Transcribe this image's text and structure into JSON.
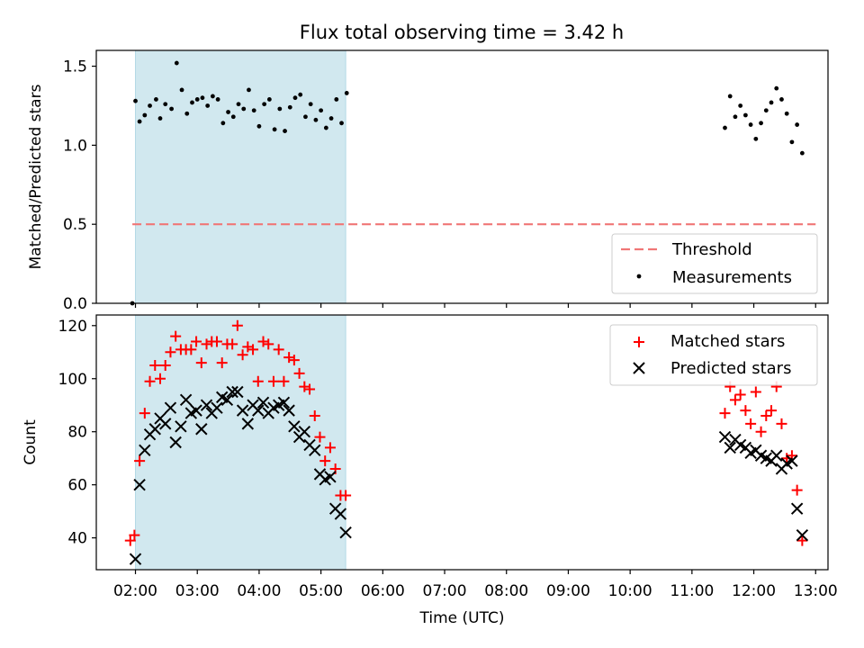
{
  "title": "Flux total observing time = 3.42 h",
  "chart_data": [
    {
      "type": "scatter",
      "ylabel": "Matched/Predicted stars",
      "xlabel": "",
      "xlim": [
        "01:22",
        "13:12"
      ],
      "ylim": [
        0,
        1.6
      ],
      "yticks": [
        0.0,
        0.5,
        1.0,
        1.5
      ],
      "ytick_labels": [
        "0.0",
        "0.5",
        "1.0",
        "1.5"
      ],
      "grid": false,
      "legend_position": "lower-right",
      "shaded_span": {
        "start": "02:00",
        "end": "05:24",
        "color": "#d1e8ef"
      },
      "threshold": {
        "name": "Threshold",
        "value": 0.5,
        "x_start": "01:57",
        "x_end": "13:00",
        "color": "#f07777",
        "style": "dashed"
      },
      "series": [
        {
          "name": "Measurements",
          "marker": "dot",
          "color": "#000000",
          "points": [
            [
              "01:57",
              0.0
            ],
            [
              "02:00",
              1.28
            ],
            [
              "02:04",
              1.15
            ],
            [
              "02:09",
              1.19
            ],
            [
              "02:14",
              1.25
            ],
            [
              "02:20",
              1.29
            ],
            [
              "02:24",
              1.17
            ],
            [
              "02:29",
              1.26
            ],
            [
              "02:35",
              1.23
            ],
            [
              "02:40",
              1.52
            ],
            [
              "02:45",
              1.35
            ],
            [
              "02:50",
              1.2
            ],
            [
              "02:55",
              1.27
            ],
            [
              "03:00",
              1.29
            ],
            [
              "03:05",
              1.3
            ],
            [
              "03:10",
              1.25
            ],
            [
              "03:15",
              1.31
            ],
            [
              "03:20",
              1.29
            ],
            [
              "03:25",
              1.14
            ],
            [
              "03:30",
              1.21
            ],
            [
              "03:35",
              1.18
            ],
            [
              "03:40",
              1.26
            ],
            [
              "03:45",
              1.23
            ],
            [
              "03:50",
              1.35
            ],
            [
              "03:55",
              1.22
            ],
            [
              "04:00",
              1.12
            ],
            [
              "04:05",
              1.26
            ],
            [
              "04:10",
              1.29
            ],
            [
              "04:15",
              1.1
            ],
            [
              "04:20",
              1.23
            ],
            [
              "04:25",
              1.09
            ],
            [
              "04:30",
              1.24
            ],
            [
              "04:35",
              1.3
            ],
            [
              "04:40",
              1.32
            ],
            [
              "04:45",
              1.18
            ],
            [
              "04:50",
              1.26
            ],
            [
              "04:55",
              1.16
            ],
            [
              "05:00",
              1.22
            ],
            [
              "05:05",
              1.11
            ],
            [
              "05:10",
              1.17
            ],
            [
              "05:15",
              1.29
            ],
            [
              "05:20",
              1.14
            ],
            [
              "05:25",
              1.33
            ],
            [
              "11:32",
              1.11
            ],
            [
              "11:37",
              1.31
            ],
            [
              "11:42",
              1.18
            ],
            [
              "11:47",
              1.25
            ],
            [
              "11:52",
              1.19
            ],
            [
              "11:57",
              1.13
            ],
            [
              "12:02",
              1.04
            ],
            [
              "12:07",
              1.14
            ],
            [
              "12:12",
              1.22
            ],
            [
              "12:17",
              1.27
            ],
            [
              "12:22",
              1.36
            ],
            [
              "12:27",
              1.29
            ],
            [
              "12:32",
              1.2
            ],
            [
              "12:37",
              1.02
            ],
            [
              "12:42",
              1.13
            ],
            [
              "12:47",
              0.95
            ]
          ]
        }
      ]
    },
    {
      "type": "scatter",
      "ylabel": "Count",
      "xlabel": "Time (UTC)",
      "xlim": [
        "01:22",
        "13:12"
      ],
      "ylim": [
        28,
        124
      ],
      "yticks": [
        40,
        60,
        80,
        100,
        120
      ],
      "ytick_labels": [
        "40",
        "60",
        "80",
        "100",
        "120"
      ],
      "xticks": [
        "02:00",
        "03:00",
        "04:00",
        "05:00",
        "06:00",
        "07:00",
        "08:00",
        "09:00",
        "10:00",
        "11:00",
        "12:00",
        "13:00"
      ],
      "grid": false,
      "legend_position": "top-right",
      "shaded_span": {
        "start": "02:00",
        "end": "05:24",
        "color": "#d1e8ef"
      },
      "series": [
        {
          "name": "Matched stars",
          "marker": "plus",
          "color": "#ff0000",
          "points": [
            [
              "01:55",
              39
            ],
            [
              "01:59",
              41
            ],
            [
              "02:04",
              69
            ],
            [
              "02:09",
              87
            ],
            [
              "02:14",
              99
            ],
            [
              "02:19",
              105
            ],
            [
              "02:24",
              100
            ],
            [
              "02:29",
              105
            ],
            [
              "02:34",
              110
            ],
            [
              "02:39",
              116
            ],
            [
              "02:44",
              111
            ],
            [
              "02:49",
              111
            ],
            [
              "02:54",
              111
            ],
            [
              "02:59",
              114
            ],
            [
              "03:04",
              106
            ],
            [
              "03:09",
              113
            ],
            [
              "03:14",
              114
            ],
            [
              "03:19",
              114
            ],
            [
              "03:24",
              106
            ],
            [
              "03:29",
              113
            ],
            [
              "03:34",
              113
            ],
            [
              "03:39",
              120
            ],
            [
              "03:44",
              109
            ],
            [
              "03:49",
              112
            ],
            [
              "03:54",
              111
            ],
            [
              "03:59",
              99
            ],
            [
              "04:04",
              114
            ],
            [
              "04:09",
              113
            ],
            [
              "04:14",
              99
            ],
            [
              "04:19",
              111
            ],
            [
              "04:24",
              99
            ],
            [
              "04:29",
              108
            ],
            [
              "04:34",
              107
            ],
            [
              "04:39",
              102
            ],
            [
              "04:44",
              97
            ],
            [
              "04:49",
              96
            ],
            [
              "04:54",
              86
            ],
            [
              "04:59",
              78
            ],
            [
              "05:04",
              69
            ],
            [
              "05:09",
              74
            ],
            [
              "05:14",
              66
            ],
            [
              "05:19",
              56
            ],
            [
              "05:24",
              56
            ],
            [
              "11:32",
              87
            ],
            [
              "11:37",
              97
            ],
            [
              "11:42",
              92
            ],
            [
              "11:47",
              94
            ],
            [
              "11:52",
              88
            ],
            [
              "11:57",
              83
            ],
            [
              "12:02",
              95
            ],
            [
              "12:07",
              80
            ],
            [
              "12:12",
              86
            ],
            [
              "12:17",
              88
            ],
            [
              "12:22",
              97
            ],
            [
              "12:27",
              83
            ],
            [
              "12:32",
              70
            ],
            [
              "12:37",
              71
            ],
            [
              "12:42",
              58
            ],
            [
              "12:47",
              39
            ]
          ]
        },
        {
          "name": "Predicted stars",
          "marker": "x",
          "color": "#000000",
          "points": [
            [
              "02:00",
              32
            ],
            [
              "02:04",
              60
            ],
            [
              "02:09",
              73
            ],
            [
              "02:14",
              79
            ],
            [
              "02:19",
              81
            ],
            [
              "02:24",
              85
            ],
            [
              "02:29",
              83
            ],
            [
              "02:34",
              89
            ],
            [
              "02:39",
              76
            ],
            [
              "02:44",
              82
            ],
            [
              "02:49",
              92
            ],
            [
              "02:54",
              87
            ],
            [
              "02:59",
              88
            ],
            [
              "03:04",
              81
            ],
            [
              "03:09",
              90
            ],
            [
              "03:14",
              87
            ],
            [
              "03:19",
              89
            ],
            [
              "03:24",
              93
            ],
            [
              "03:29",
              92
            ],
            [
              "03:34",
              95
            ],
            [
              "03:39",
              95
            ],
            [
              "03:44",
              88
            ],
            [
              "03:49",
              83
            ],
            [
              "03:54",
              90
            ],
            [
              "03:59",
              88
            ],
            [
              "04:04",
              91
            ],
            [
              "04:09",
              87
            ],
            [
              "04:14",
              89
            ],
            [
              "04:19",
              90
            ],
            [
              "04:24",
              91
            ],
            [
              "04:29",
              88
            ],
            [
              "04:34",
              82
            ],
            [
              "04:39",
              78
            ],
            [
              "04:44",
              80
            ],
            [
              "04:49",
              75
            ],
            [
              "04:54",
              73
            ],
            [
              "04:59",
              64
            ],
            [
              "05:04",
              62
            ],
            [
              "05:09",
              63
            ],
            [
              "05:14",
              51
            ],
            [
              "05:19",
              49
            ],
            [
              "05:24",
              42
            ],
            [
              "11:32",
              78
            ],
            [
              "11:37",
              74
            ],
            [
              "11:42",
              77
            ],
            [
              "11:47",
              75
            ],
            [
              "11:52",
              74
            ],
            [
              "11:57",
              72
            ],
            [
              "12:02",
              73
            ],
            [
              "12:07",
              71
            ],
            [
              "12:12",
              70
            ],
            [
              "12:17",
              69
            ],
            [
              "12:22",
              71
            ],
            [
              "12:27",
              66
            ],
            [
              "12:32",
              68
            ],
            [
              "12:37",
              69
            ],
            [
              "12:42",
              51
            ],
            [
              "12:47",
              41
            ]
          ]
        }
      ]
    }
  ]
}
